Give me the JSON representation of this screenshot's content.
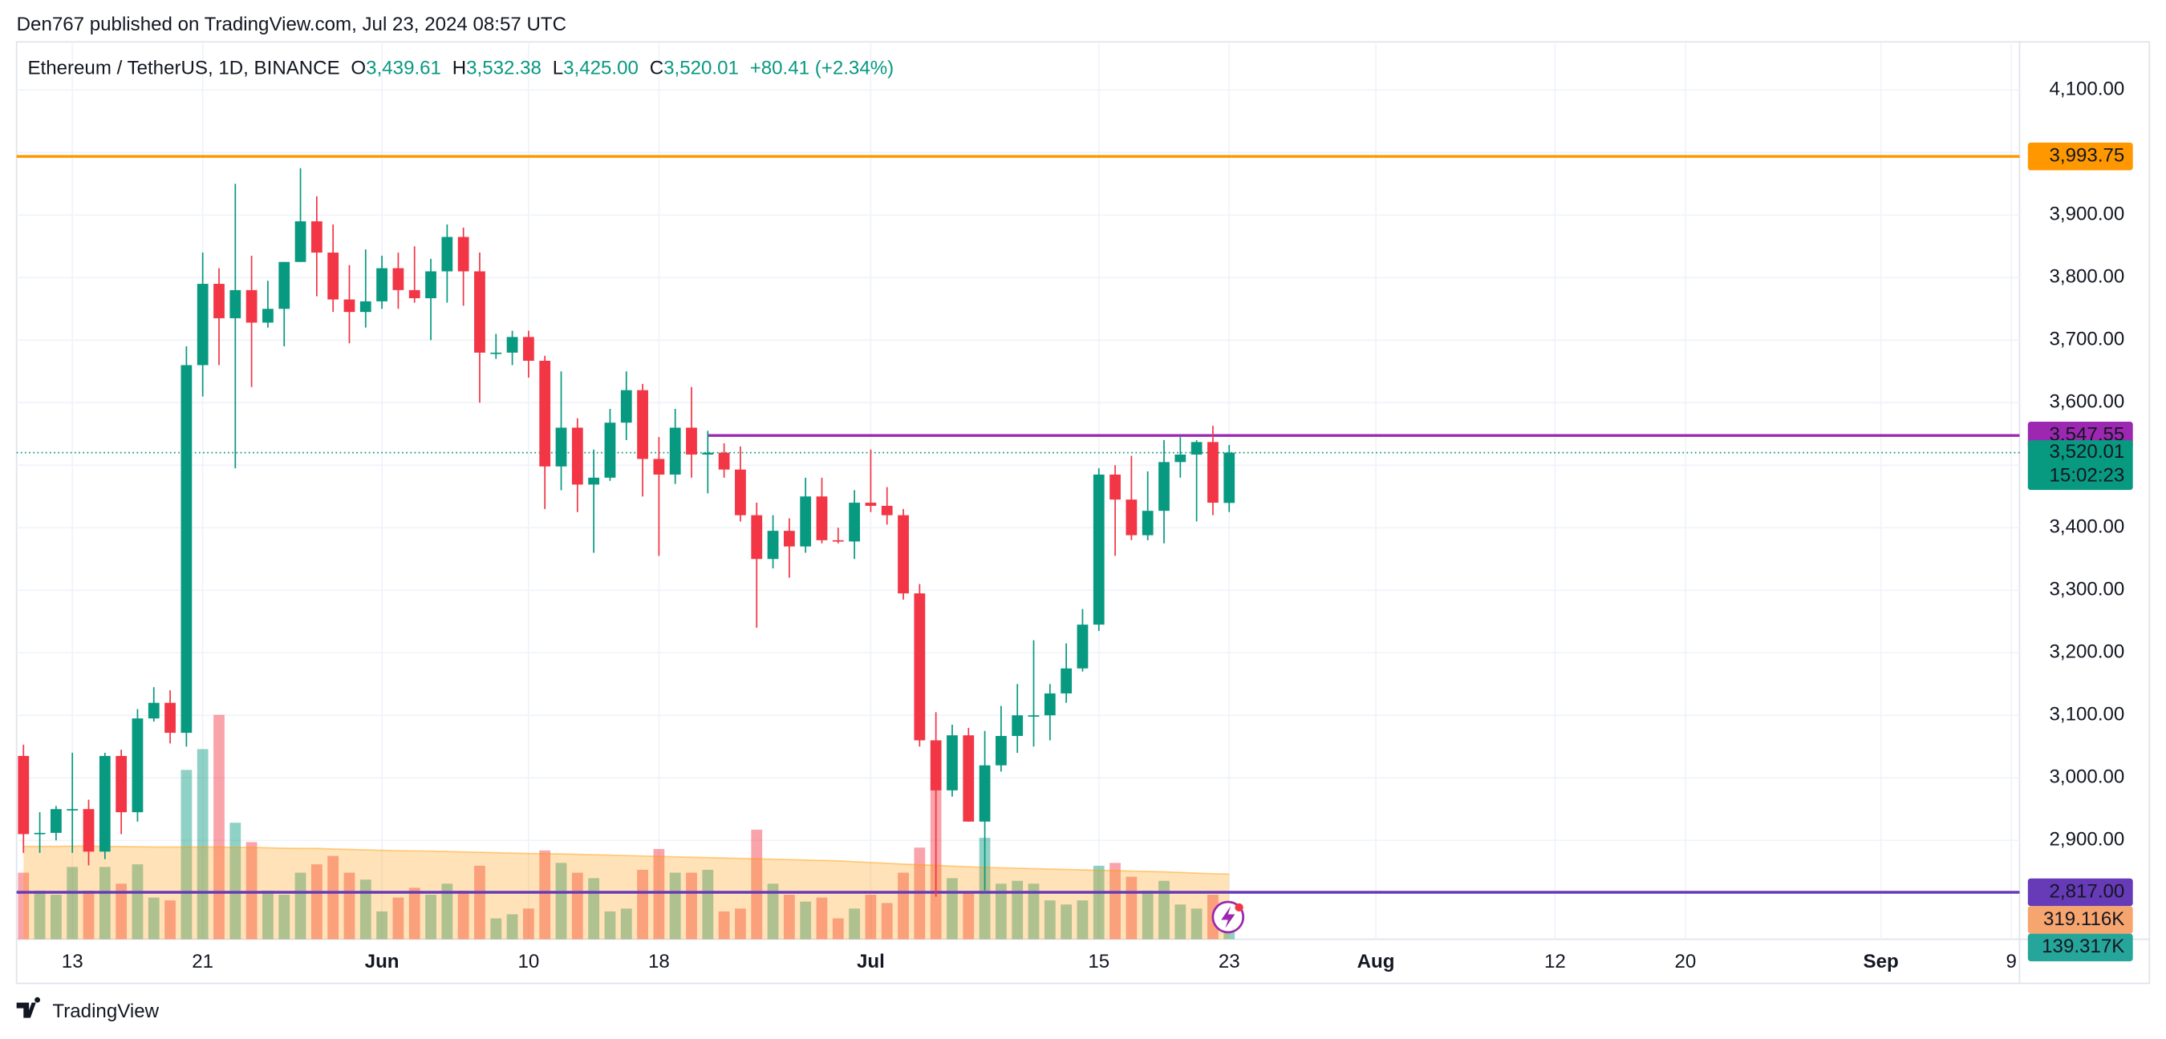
{
  "chart_data": {
    "type": "candlestick",
    "published": "Den767 published on TradingView.com, Jul 23, 2024 08:57 UTC",
    "title": "Ethereum / TetherUS, 1D, BINANCE",
    "legend": [
      {
        "key": "O",
        "value": "3,439.61"
      },
      {
        "key": "H",
        "value": "3,532.38"
      },
      {
        "key": "L",
        "value": "3,425.00"
      },
      {
        "key": "C",
        "value": "3,520.01"
      }
    ],
    "change": "+80.41 (+2.34%)",
    "brand": "TradingView",
    "up_color": "#089981",
    "down_color": "#f23645",
    "x": [
      "May 10",
      "May 11",
      "May 12",
      "May 13",
      "May 14",
      "May 15",
      "May 16",
      "May 17",
      "May 18",
      "May 19",
      "May 20",
      "May 21",
      "May 22",
      "May 23",
      "May 24",
      "May 25",
      "May 26",
      "May 27",
      "May 28",
      "May 29",
      "May 30",
      "May 31",
      "Jun 1",
      "Jun 2",
      "Jun 3",
      "Jun 4",
      "Jun 5",
      "Jun 6",
      "Jun 7",
      "Jun 8",
      "Jun 9",
      "Jun 10",
      "Jun 11",
      "Jun 12",
      "Jun 13",
      "Jun 14",
      "Jun 15",
      "Jun 16",
      "Jun 17",
      "Jun 18",
      "Jun 19",
      "Jun 20",
      "Jun 21",
      "Jun 22",
      "Jun 23",
      "Jun 24",
      "Jun 25",
      "Jun 26",
      "Jun 27",
      "Jun 28",
      "Jun 29",
      "Jun 30",
      "Jul 1",
      "Jul 2",
      "Jul 3",
      "Jul 4",
      "Jul 5",
      "Jul 6",
      "Jul 7",
      "Jul 8",
      "Jul 9",
      "Jul 10",
      "Jul 11",
      "Jul 12",
      "Jul 13",
      "Jul 14",
      "Jul 15",
      "Jul 16",
      "Jul 17",
      "Jul 18",
      "Jul 19",
      "Jul 20",
      "Jul 21",
      "Jul 22",
      "Jul 23"
    ],
    "open": [
      3035,
      2910,
      2912,
      2950,
      2950,
      2882,
      3035,
      2945,
      3095,
      3120,
      3072,
      3660,
      3790,
      3735,
      3780,
      3728,
      3750,
      3825,
      3890,
      3840,
      3765,
      3745,
      3762,
      3815,
      3780,
      3767,
      3810,
      3865,
      3810,
      3680,
      3680,
      3705,
      3667,
      3498,
      3560,
      3469,
      3480,
      3568,
      3620,
      3510,
      3485,
      3560,
      3517,
      3520,
      3493,
      3420,
      3350,
      3395,
      3370,
      3450,
      3380,
      3378,
      3440,
      3435,
      3420,
      3295,
      3060,
      2980,
      3068,
      2930,
      3020,
      3067,
      3100,
      3100,
      3135,
      3175,
      3245,
      3485,
      3445,
      3388,
      3427,
      3505,
      3517,
      3537,
      3439.61
    ],
    "high": [
      3053,
      2945,
      2955,
      3040,
      2965,
      3040,
      3045,
      3110,
      3145,
      3140,
      3690,
      3840,
      3815,
      3950,
      3835,
      3795,
      3825,
      3975,
      3930,
      3885,
      3820,
      3845,
      3835,
      3840,
      3850,
      3830,
      3885,
      3880,
      3840,
      3710,
      3715,
      3715,
      3675,
      3650,
      3575,
      3525,
      3590,
      3650,
      3630,
      3545,
      3590,
      3625,
      3555,
      3535,
      3530,
      3440,
      3420,
      3415,
      3480,
      3480,
      3400,
      3460,
      3525,
      3465,
      3430,
      3310,
      3105,
      3085,
      3080,
      3075,
      3115,
      3150,
      3220,
      3150,
      3215,
      3270,
      3495,
      3500,
      3515,
      3490,
      3540,
      3545,
      3540,
      3563,
      3532.38
    ],
    "low": [
      2880,
      2880,
      2900,
      2880,
      2860,
      2870,
      2910,
      2930,
      3090,
      3055,
      3050,
      3610,
      3660,
      3495,
      3625,
      3720,
      3690,
      3825,
      3770,
      3745,
      3695,
      3720,
      3750,
      3750,
      3760,
      3700,
      3760,
      3755,
      3600,
      3670,
      3660,
      3640,
      3430,
      3460,
      3425,
      3360,
      3475,
      3540,
      3450,
      3355,
      3470,
      3480,
      3455,
      3480,
      3410,
      3240,
      3335,
      3320,
      3360,
      3375,
      3375,
      3350,
      3425,
      3405,
      3285,
      3050,
      2810,
      2970,
      2930,
      2820,
      3010,
      3040,
      3050,
      3060,
      3120,
      3170,
      3235,
      3355,
      3380,
      3380,
      3375,
      3480,
      3410,
      3420,
      3425
    ],
    "close": [
      2910,
      2912,
      2950,
      2950,
      2882,
      3035,
      2945,
      3095,
      3120,
      3072,
      3660,
      3790,
      3735,
      3780,
      3728,
      3750,
      3825,
      3890,
      3840,
      3765,
      3745,
      3762,
      3815,
      3780,
      3767,
      3810,
      3865,
      3810,
      3680,
      3680,
      3705,
      3667,
      3498,
      3560,
      3469,
      3480,
      3568,
      3620,
      3510,
      3485,
      3560,
      3517,
      3520,
      3493,
      3420,
      3350,
      3395,
      3370,
      3450,
      3380,
      3378,
      3440,
      3435,
      3420,
      3295,
      3060,
      2980,
      3068,
      2930,
      3020,
      3067,
      3100,
      3100,
      3135,
      3175,
      3245,
      3485,
      3445,
      3388,
      3427,
      3505,
      3517,
      3537,
      3440,
      3520.01
    ],
    "ylim": [
      2742,
      4177
    ],
    "yticks": [
      {
        "value": 2900,
        "label": "2,900.00"
      },
      {
        "value": 3000,
        "label": "3,000.00"
      },
      {
        "value": 3100,
        "label": "3,100.00"
      },
      {
        "value": 3200,
        "label": "3,200.00"
      },
      {
        "value": 3300,
        "label": "3,300.00"
      },
      {
        "value": 3400,
        "label": "3,400.00"
      },
      {
        "value": 3500,
        "label": "3,500.00"
      },
      {
        "value": 3600,
        "label": "3,600.00"
      },
      {
        "value": 3700,
        "label": "3,700.00"
      },
      {
        "value": 3800,
        "label": "3,800.00"
      },
      {
        "value": 3900,
        "label": "3,900.00"
      },
      {
        "value": 4000,
        "label": "4,000.00"
      },
      {
        "value": 4100,
        "label": "4,100.00"
      }
    ],
    "xlim": [
      "May 10",
      "Sep 9"
    ],
    "xticks": [
      {
        "value": "May 13",
        "label": "13"
      },
      {
        "value": "May 21",
        "label": "21"
      },
      {
        "value": "Jun 1",
        "label": "Jun"
      },
      {
        "value": "Jun 10",
        "label": "10"
      },
      {
        "value": "Jun 18",
        "label": "18"
      },
      {
        "value": "Jul 1",
        "label": "Jul"
      },
      {
        "value": "Jul 15",
        "label": "15"
      },
      {
        "value": "Jul 23",
        "label": "23"
      },
      {
        "value": "Aug 1",
        "label": "Aug"
      },
      {
        "value": "Aug 12",
        "label": "12"
      },
      {
        "value": "Aug 20",
        "label": "20"
      },
      {
        "value": "Sep 1",
        "label": "Sep"
      },
      {
        "value": "Sep 9",
        "label": "9"
      }
    ],
    "grid": true,
    "levels": [
      {
        "value": 3993.75,
        "label": "3,993.75",
        "color": "#ff9800",
        "text_color": "#131722"
      },
      {
        "value": 3547.55,
        "label": "3,547.55",
        "color": "#9c27b0",
        "text_color": "#ffffff",
        "from": "Jun 21"
      },
      {
        "value": 2817,
        "label": "2,817.00",
        "color": "#673ab7",
        "text_color": "#ffffff"
      }
    ],
    "last_price": {
      "value": 3520.01,
      "label": "3,520.01",
      "countdown": "15:02:23",
      "color": "#089981"
    },
    "volume": {
      "values": [
        326,
        238,
        218,
        354,
        238,
        354,
        272,
        367,
        204,
        190,
        830,
        932,
        1100,
        571,
        476,
        238,
        218,
        326,
        367,
        408,
        326,
        292,
        136,
        204,
        252,
        218,
        272,
        238,
        360,
        102,
        122,
        150,
        435,
        374,
        326,
        299,
        136,
        150,
        340,
        442,
        326,
        326,
        340,
        136,
        150,
        537,
        272,
        218,
        184,
        204,
        102,
        150,
        218,
        177,
        326,
        449,
        735,
        299,
        231,
        497,
        272,
        286,
        272,
        190,
        170,
        190,
        360,
        374,
        306,
        238,
        286,
        170,
        150,
        218,
        139.317
      ],
      "last_label": "139.317K",
      "lim": [
        0,
        4400
      ],
      "label_color": "#26a69a"
    },
    "volume_ma": {
      "values": [
        455,
        455,
        455,
        456,
        456,
        455,
        454,
        453,
        452,
        452,
        452,
        452,
        452,
        450,
        450,
        448,
        446,
        445,
        445,
        442,
        440,
        438,
        436,
        434,
        433,
        432,
        430,
        428,
        426,
        424,
        422,
        420,
        419,
        418,
        416,
        414,
        412,
        410,
        408,
        406,
        404,
        402,
        400,
        398,
        396,
        394,
        392,
        390,
        388,
        386,
        384,
        380,
        376,
        372,
        368,
        365,
        362,
        358,
        355,
        352,
        350,
        348,
        346,
        344,
        342,
        340,
        338,
        336,
        334,
        332,
        330,
        327,
        324,
        321,
        319.116
      ],
      "last_label": "319.116K",
      "color": "#ff9800",
      "label_color": "#f7a56e"
    }
  }
}
